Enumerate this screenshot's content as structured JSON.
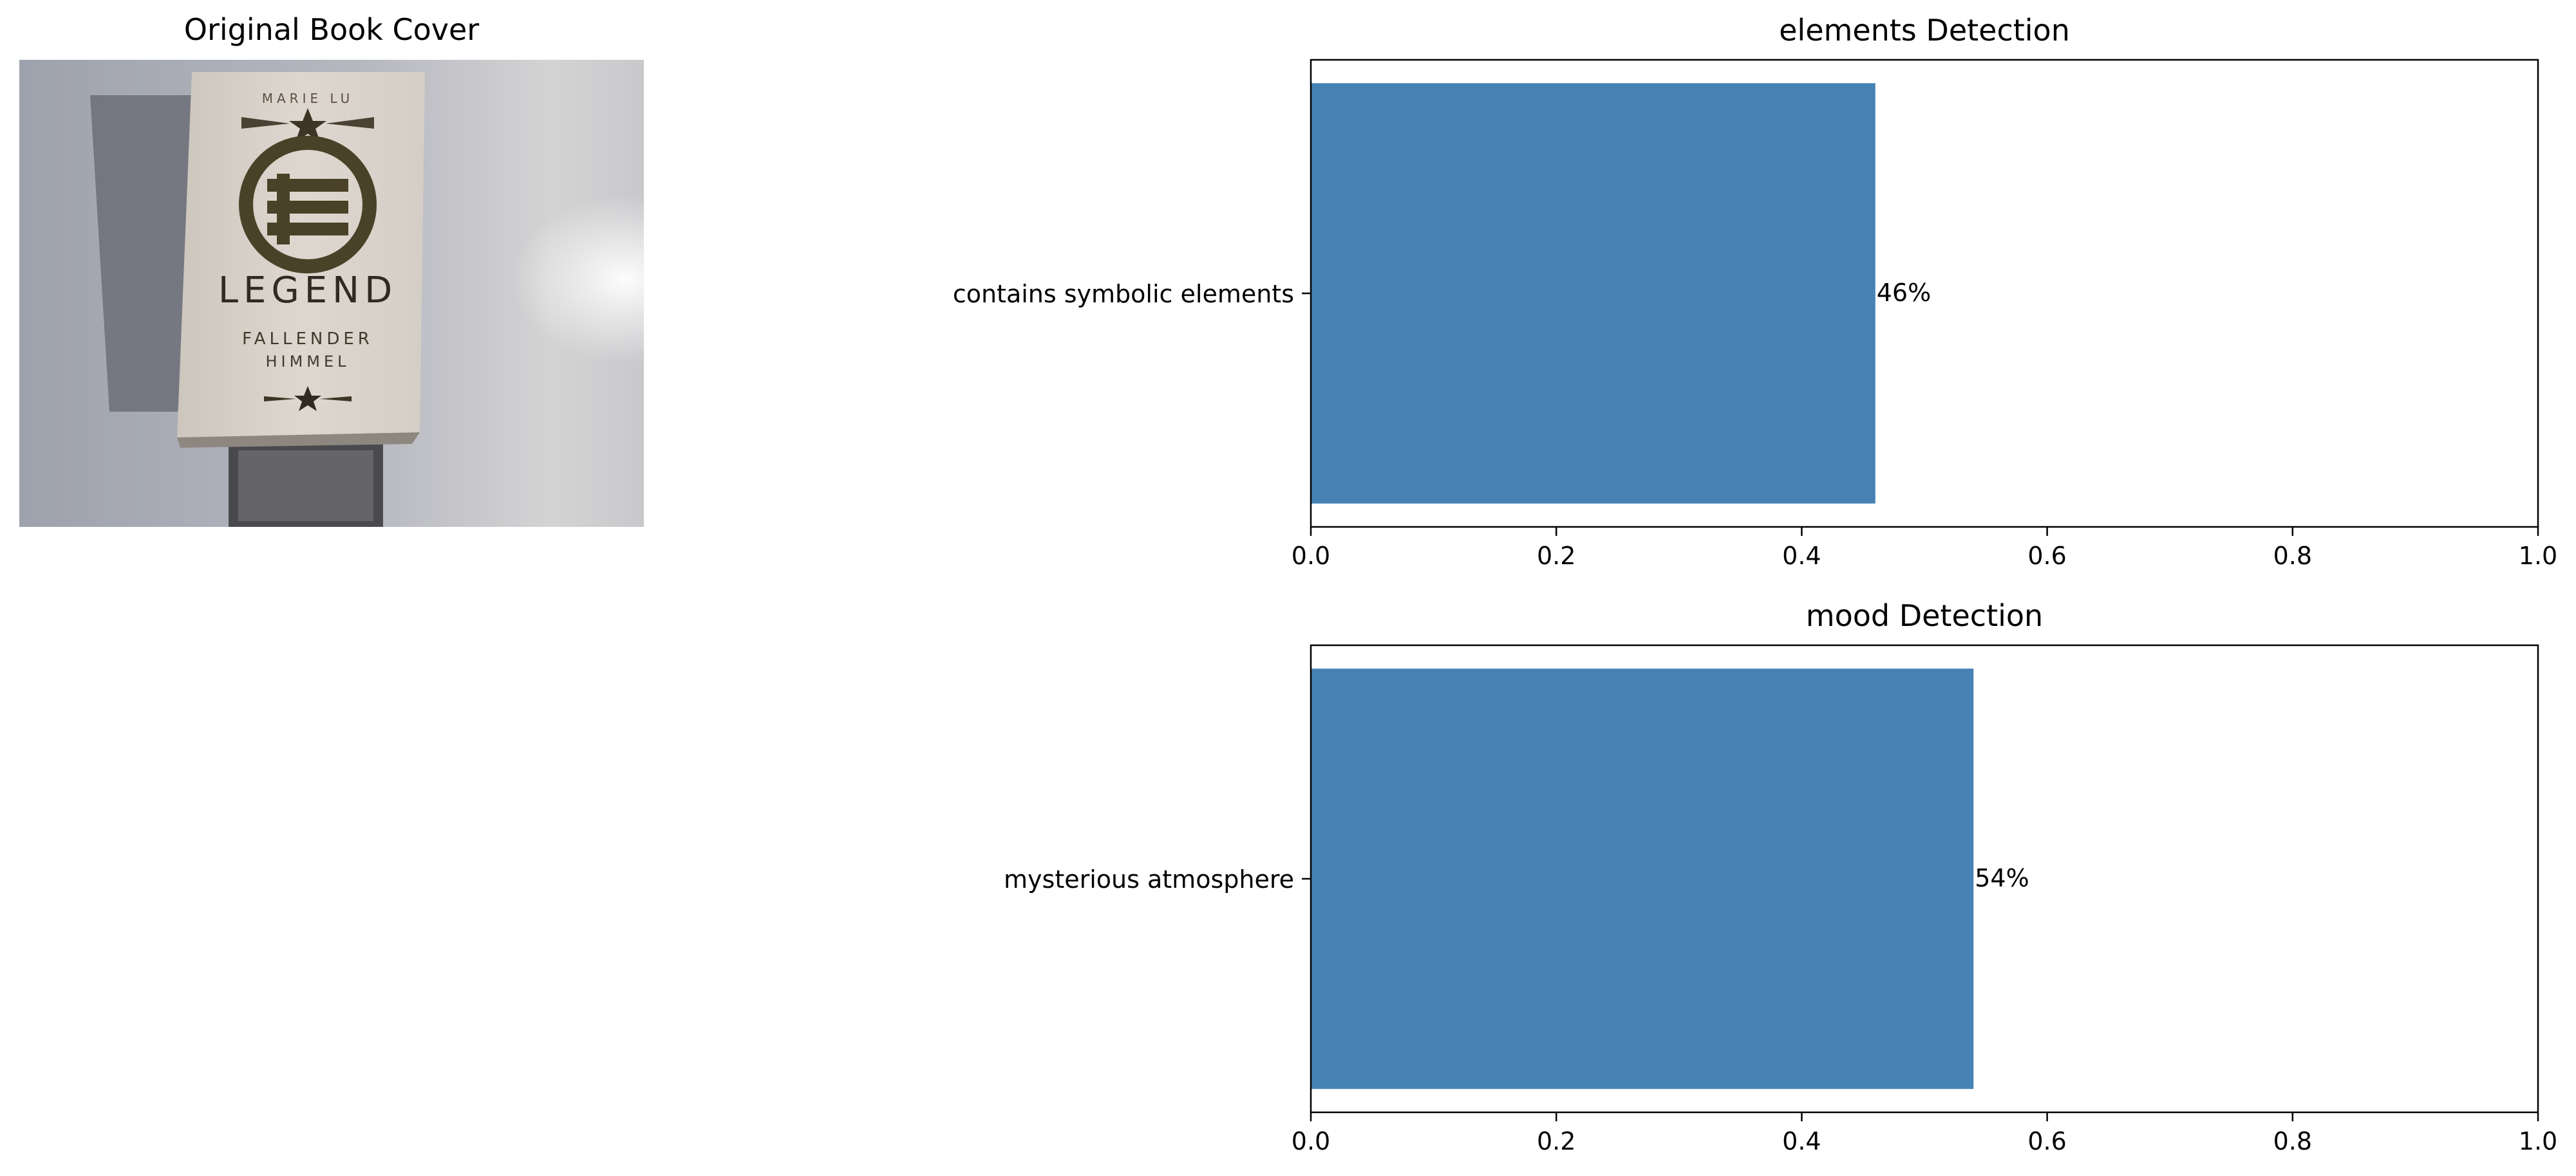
{
  "cover_panel": {
    "title": "Original Book Cover",
    "cover_text": {
      "author": "MARIE LU",
      "title": "LEGEND",
      "subtitle_line1": "FALLENDER",
      "subtitle_line2": "HIMMEL"
    }
  },
  "colors": {
    "bar": "#4682b4",
    "axis": "#000000",
    "background": "#ffffff"
  },
  "chart_data": [
    {
      "type": "bar",
      "orientation": "horizontal",
      "title": "elements Detection",
      "categories": [
        "contains symbolic elements"
      ],
      "values": [
        0.46
      ],
      "data_labels": [
        "46%"
      ],
      "xlim": [
        0,
        1
      ],
      "xticks": [
        "0.0",
        "0.2",
        "0.4",
        "0.6",
        "0.8",
        "1.0"
      ],
      "xlabel": "",
      "ylabel": "",
      "grid": false
    },
    {
      "type": "bar",
      "orientation": "horizontal",
      "title": "mood Detection",
      "categories": [
        "mysterious atmosphere"
      ],
      "values": [
        0.54
      ],
      "data_labels": [
        "54%"
      ],
      "xlim": [
        0,
        1
      ],
      "xticks": [
        "0.0",
        "0.2",
        "0.4",
        "0.6",
        "0.8",
        "1.0"
      ],
      "xlabel": "",
      "ylabel": "",
      "grid": false
    }
  ]
}
